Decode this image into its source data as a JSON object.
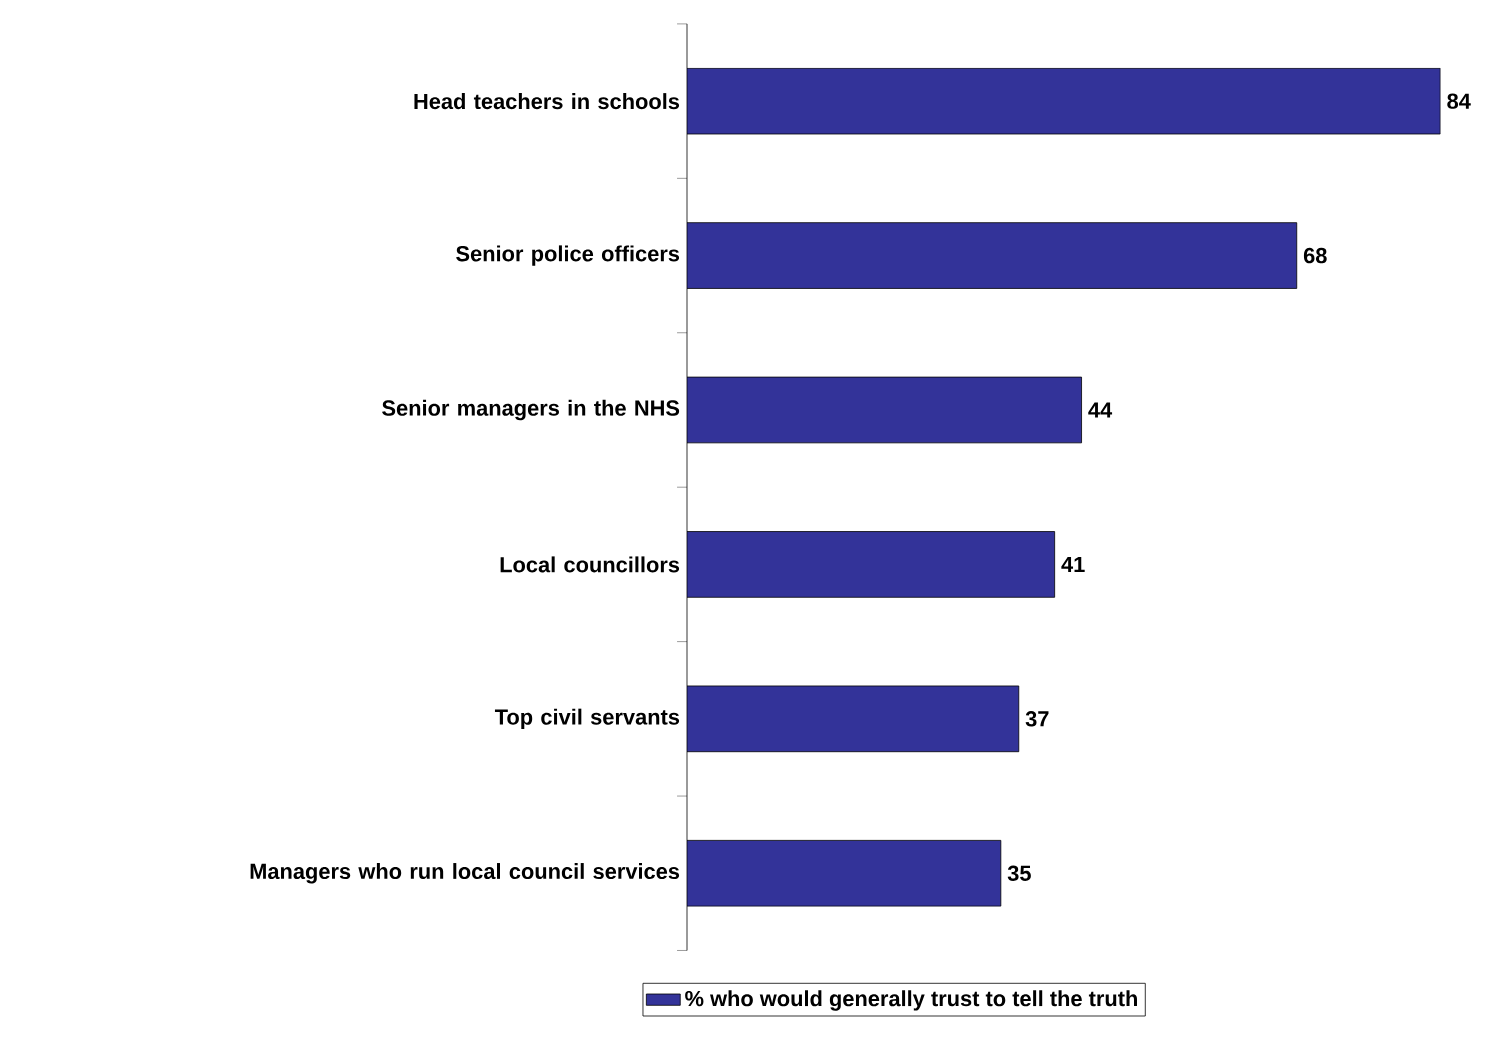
{
  "chart_data": {
    "type": "bar",
    "orientation": "horizontal",
    "categories": [
      "Head teachers in schools",
      "Senior police officers",
      "Senior managers in the NHS",
      "Local councillors",
      "Top civil servants",
      "Managers who run local council services"
    ],
    "series": [
      {
        "name": "% who would generally trust to tell the truth",
        "color": "#333399",
        "values": [
          84,
          68,
          44,
          41,
          37,
          35
        ]
      }
    ],
    "data_labels": true,
    "legend": "bottom"
  }
}
